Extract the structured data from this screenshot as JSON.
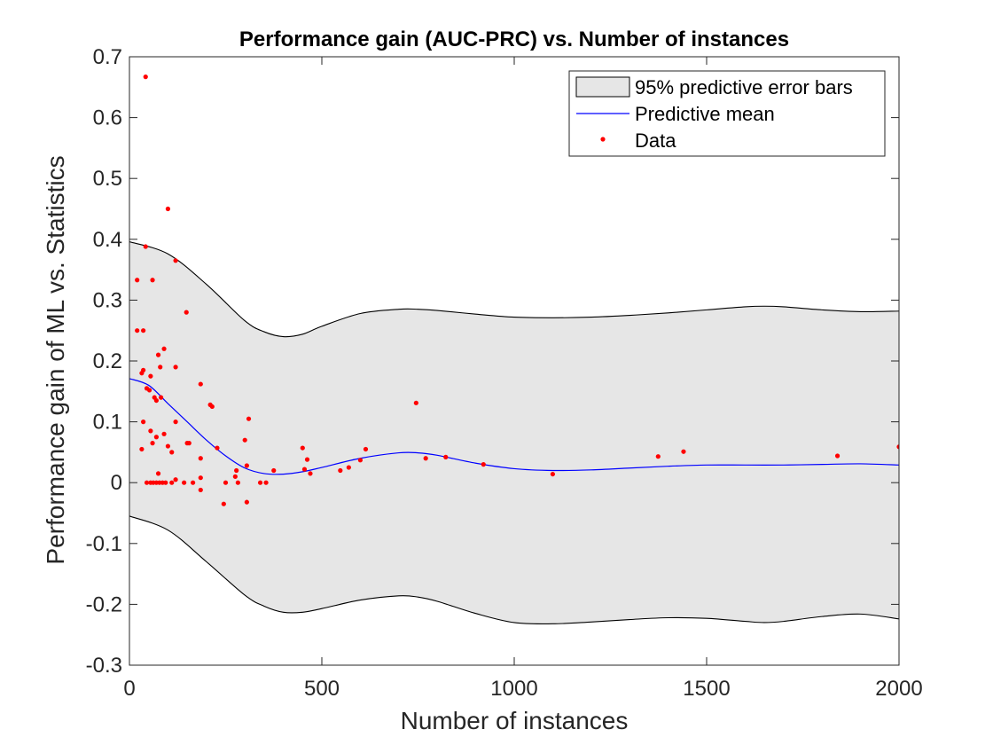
{
  "chart_data": {
    "type": "line",
    "title": "Performance gain (AUC-PRC) vs. Number of instances",
    "xlabel": "Number of instances",
    "ylabel": "Performance gain of ML vs. Statistics",
    "xlim": [
      0,
      2000
    ],
    "ylim": [
      -0.3,
      0.7
    ],
    "xticks": [
      0,
      500,
      1000,
      1500,
      2000
    ],
    "xtick_labels": [
      "0",
      "500",
      "1000",
      "1500",
      "2000"
    ],
    "yticks": [
      -0.3,
      -0.2,
      -0.1,
      0,
      0.1,
      0.2,
      0.3,
      0.4,
      0.5,
      0.6,
      0.7
    ],
    "ytick_labels": [
      "-0.3",
      "-0.2",
      "-0.1",
      "0",
      "0.1",
      "0.2",
      "0.3",
      "0.4",
      "0.5",
      "0.6",
      "0.7"
    ],
    "grid": false,
    "legend_position": "top-right",
    "colors": {
      "band_fill": "#e6e6e6",
      "band_edge": "#000000",
      "mean": "#0000ff",
      "data": "#ff0000"
    },
    "series": [
      {
        "name": "95% predictive error bars",
        "kind": "band",
        "x": [
          0,
          100,
          200,
          300,
          350,
          400,
          450,
          500,
          600,
          700,
          750,
          800,
          900,
          1000,
          1100,
          1200,
          1300,
          1400,
          1500,
          1600,
          1650,
          1700,
          1800,
          1900,
          2000
        ],
        "upper": [
          0.396,
          0.376,
          0.326,
          0.266,
          0.248,
          0.24,
          0.244,
          0.257,
          0.278,
          0.285,
          0.285,
          0.283,
          0.277,
          0.272,
          0.271,
          0.272,
          0.275,
          0.279,
          0.284,
          0.289,
          0.29,
          0.289,
          0.284,
          0.281,
          0.282
        ],
        "lower": [
          -0.055,
          -0.078,
          -0.13,
          -0.185,
          -0.203,
          -0.213,
          -0.213,
          -0.207,
          -0.193,
          -0.186,
          -0.188,
          -0.195,
          -0.215,
          -0.23,
          -0.232,
          -0.229,
          -0.225,
          -0.222,
          -0.223,
          -0.228,
          -0.23,
          -0.228,
          -0.22,
          -0.216,
          -0.224
        ]
      },
      {
        "name": "Predictive mean",
        "kind": "line",
        "x": [
          0,
          50,
          100,
          150,
          200,
          250,
          300,
          350,
          400,
          450,
          500,
          600,
          700,
          750,
          800,
          900,
          1000,
          1100,
          1200,
          1300,
          1400,
          1500,
          1600,
          1700,
          1800,
          1900,
          2000
        ],
        "y": [
          0.171,
          0.16,
          0.13,
          0.1,
          0.07,
          0.044,
          0.024,
          0.015,
          0.014,
          0.018,
          0.025,
          0.04,
          0.049,
          0.049,
          0.045,
          0.032,
          0.023,
          0.02,
          0.021,
          0.024,
          0.027,
          0.029,
          0.029,
          0.029,
          0.03,
          0.031,
          0.029
        ]
      },
      {
        "name": "Data",
        "kind": "scatter",
        "points": [
          [
            42,
            0.667
          ],
          [
            42,
            0.388
          ],
          [
            20,
            0.333
          ],
          [
            60,
            0.333
          ],
          [
            20,
            0.25
          ],
          [
            36,
            0.25
          ],
          [
            32,
            0.18
          ],
          [
            36,
            0.185
          ],
          [
            45,
            0.155
          ],
          [
            52,
            0.152
          ],
          [
            55,
            0.175
          ],
          [
            70,
            0.135
          ],
          [
            65,
            0.14
          ],
          [
            75,
            0.21
          ],
          [
            80,
            0.19
          ],
          [
            90,
            0.22
          ],
          [
            100,
            0.45
          ],
          [
            120,
            0.365
          ],
          [
            120,
            0.19
          ],
          [
            148,
            0.28
          ],
          [
            36,
            0.1
          ],
          [
            55,
            0.085
          ],
          [
            32,
            0.055
          ],
          [
            82,
            0.14
          ],
          [
            70,
            0.075
          ],
          [
            90,
            0.08
          ],
          [
            60,
            0.065
          ],
          [
            75,
            0.015
          ],
          [
            100,
            0.06
          ],
          [
            110,
            0.05
          ],
          [
            120,
            0.1
          ],
          [
            150,
            0.065
          ],
          [
            155,
            0.065
          ],
          [
            45,
            0.0
          ],
          [
            55,
            0.0
          ],
          [
            62,
            0.0
          ],
          [
            70,
            0.0
          ],
          [
            78,
            0.0
          ],
          [
            86,
            0.0
          ],
          [
            94,
            0.0
          ],
          [
            110,
            0.0
          ],
          [
            120,
            0.005
          ],
          [
            142,
            0.0
          ],
          [
            165,
            0.0
          ],
          [
            185,
            0.162
          ],
          [
            210,
            0.128
          ],
          [
            215,
            0.125
          ],
          [
            228,
            0.057
          ],
          [
            185,
            0.04
          ],
          [
            185,
            0.008
          ],
          [
            185,
            -0.012
          ],
          [
            245,
            -0.035
          ],
          [
            250,
            0.0
          ],
          [
            275,
            0.01
          ],
          [
            278,
            0.02
          ],
          [
            282,
            0.0
          ],
          [
            300,
            0.07
          ],
          [
            305,
            0.028
          ],
          [
            305,
            -0.032
          ],
          [
            310,
            0.105
          ],
          [
            340,
            0.0
          ],
          [
            355,
            0.0
          ],
          [
            375,
            0.02
          ],
          [
            450,
            0.057
          ],
          [
            455,
            0.022
          ],
          [
            462,
            0.038
          ],
          [
            470,
            0.015
          ],
          [
            548,
            0.02
          ],
          [
            570,
            0.025
          ],
          [
            600,
            0.037
          ],
          [
            614,
            0.055
          ],
          [
            745,
            0.131
          ],
          [
            770,
            0.04
          ],
          [
            822,
            0.042
          ],
          [
            920,
            0.03
          ],
          [
            1100,
            0.014
          ],
          [
            1374,
            0.043
          ],
          [
            1440,
            0.051
          ],
          [
            1840,
            0.044
          ],
          [
            2000,
            0.059
          ]
        ]
      }
    ]
  }
}
